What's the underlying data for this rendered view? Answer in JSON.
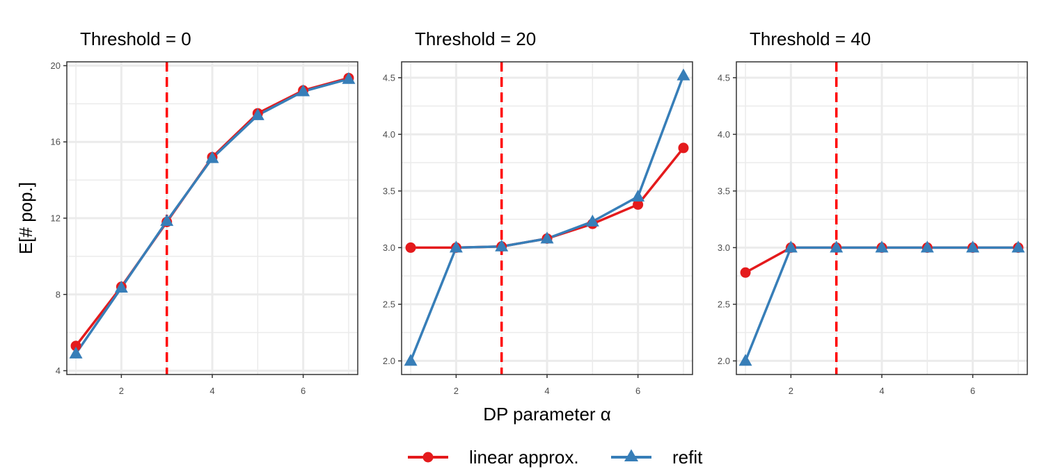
{
  "chart_data": {
    "type": "line",
    "ylabel": "E[# pop.]",
    "xlabel": "DP parameter α",
    "colors": {
      "linear_approx": "#E41A1C",
      "refit": "#377EB8",
      "vline": "#FF0000"
    },
    "legend": {
      "position": "bottom",
      "items": [
        {
          "name": "linear approx.",
          "color": "#E41A1C",
          "marker": "circle"
        },
        {
          "name": "refit",
          "color": "#377EB8",
          "marker": "triangle"
        }
      ]
    },
    "grid": true,
    "x_ticks": [
      2,
      4,
      6
    ],
    "panels": [
      {
        "title": "Threshold = 0",
        "xlim": [
          0.8,
          7.2
        ],
        "ylim": [
          3.8,
          20.2
        ],
        "y_ticks": [
          4,
          8,
          12,
          16,
          20
        ],
        "y_tick_labels": [
          "4",
          "8",
          "12",
          "16",
          "20"
        ],
        "vline": 3,
        "series": [
          {
            "name": "linear approx.",
            "x": [
              1,
              2,
              3,
              4,
              5,
              6,
              7
            ],
            "y": [
              5.3,
              8.4,
              11.8,
              15.2,
              17.5,
              18.7,
              19.35
            ]
          },
          {
            "name": "refit",
            "x": [
              1,
              2,
              3,
              4,
              5,
              6,
              7
            ],
            "y": [
              4.9,
              8.35,
              11.85,
              15.15,
              17.4,
              18.65,
              19.3
            ]
          }
        ]
      },
      {
        "title": "Threshold = 20",
        "xlim": [
          0.8,
          7.2
        ],
        "ylim": [
          1.88,
          4.64
        ],
        "y_ticks": [
          2.0,
          2.5,
          3.0,
          3.5,
          4.0,
          4.5
        ],
        "y_tick_labels": [
          "2.0",
          "2.5",
          "3.0",
          "3.5",
          "4.0",
          "4.5"
        ],
        "vline": 3,
        "series": [
          {
            "name": "linear approx.",
            "x": [
              1,
              2,
              3,
              4,
              5,
              6,
              7
            ],
            "y": [
              3.0,
              3.0,
              3.01,
              3.08,
              3.21,
              3.38,
              3.88
            ]
          },
          {
            "name": "refit",
            "x": [
              1,
              2,
              3,
              4,
              5,
              6,
              7
            ],
            "y": [
              2.0,
              3.0,
              3.01,
              3.08,
              3.23,
              3.45,
              4.52
            ]
          }
        ]
      },
      {
        "title": "Threshold = 40",
        "xlim": [
          0.8,
          7.2
        ],
        "ylim": [
          1.88,
          4.64
        ],
        "y_ticks": [
          2.0,
          2.5,
          3.0,
          3.5,
          4.0,
          4.5
        ],
        "y_tick_labels": [
          "2.0",
          "2.5",
          "3.0",
          "3.5",
          "4.0",
          "4.5"
        ],
        "vline": 3,
        "series": [
          {
            "name": "linear approx.",
            "x": [
              1,
              2,
              3,
              4,
              5,
              6,
              7
            ],
            "y": [
              2.78,
              3.0,
              3.0,
              3.0,
              3.0,
              3.0,
              3.0
            ]
          },
          {
            "name": "refit",
            "x": [
              1,
              2,
              3,
              4,
              5,
              6,
              7
            ],
            "y": [
              2.0,
              3.0,
              3.0,
              3.0,
              3.0,
              3.0,
              3.0
            ]
          }
        ]
      }
    ]
  }
}
